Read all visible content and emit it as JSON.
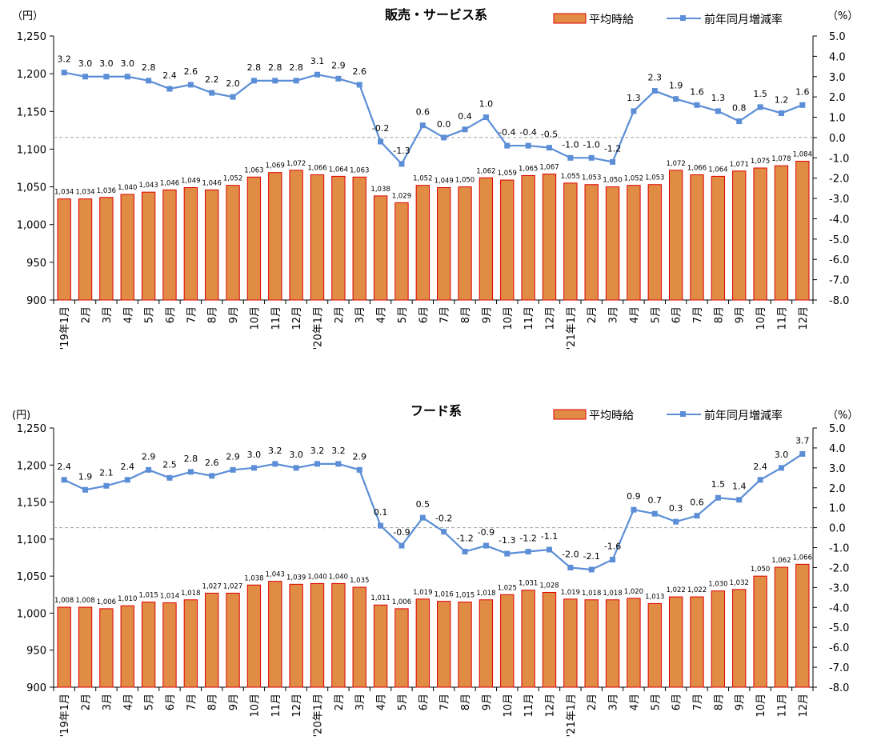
{
  "colors": {
    "bar_fill": "#E08C45",
    "bar_stroke": "#E00000",
    "line": "#5B8ED6",
    "zero_line": "#A0A0A0"
  },
  "chart_data": [
    {
      "type": "bar",
      "title": "販売・サービス系",
      "left_unit": "（円）",
      "right_unit": "（%）",
      "legend": {
        "bar": "平均時給",
        "line": "前年同月増減率",
        "placement": "top-right"
      },
      "categories": [
        "'19年1月",
        "2月",
        "3月",
        "4月",
        "5月",
        "6月",
        "7月",
        "8月",
        "9月",
        "10月",
        "11月",
        "12月",
        "'20年1月",
        "2月",
        "3月",
        "4月",
        "5月",
        "6月",
        "7月",
        "8月",
        "9月",
        "10月",
        "11月",
        "12月",
        "'21年1月",
        "2月",
        "3月",
        "4月",
        "5月",
        "6月",
        "7月",
        "8月",
        "9月",
        "10月",
        "11月",
        "12月"
      ],
      "ylim": [
        900,
        1250
      ],
      "yticks": [
        "900",
        "950",
        "1,000",
        "1,050",
        "1,100",
        "1,150",
        "1,200",
        "1,250"
      ],
      "y2lim": [
        -8.0,
        5.0
      ],
      "y2ticks": [
        "-8.0",
        "-7.0",
        "-6.0",
        "-5.0",
        "-4.0",
        "-3.0",
        "-2.0",
        "-1.0",
        "0.0",
        "1.0",
        "2.0",
        "3.0",
        "4.0",
        "5.0"
      ],
      "series": [
        {
          "name": "平均時給",
          "type": "bar",
          "axis": "left",
          "values": [
            1034,
            1034,
            1036,
            1040,
            1043,
            1046,
            1049,
            1046,
            1052,
            1063,
            1069,
            1072,
            1066,
            1064,
            1063,
            1038,
            1029,
            1052,
            1049,
            1050,
            1062,
            1059,
            1065,
            1067,
            1055,
            1053,
            1050,
            1052,
            1053,
            1072,
            1066,
            1064,
            1071,
            1075,
            1078,
            1084
          ],
          "labels": [
            "1,034",
            "1,034",
            "1,036",
            "1,040",
            "1,043",
            "1,046",
            "1,049",
            "1,046",
            "1,052",
            "1,063",
            "1,069",
            "1,072",
            "1,066",
            "1,064",
            "1,063",
            "1,038",
            "1,029",
            "1,052",
            "1,049",
            "1,050",
            "1,062",
            "1,059",
            "1,065",
            "1,067",
            "1,055",
            "1,053",
            "1,050",
            "1,052",
            "1,053",
            "1,072",
            "1,066",
            "1,064",
            "1,071",
            "1,075",
            "1,078",
            "1,084"
          ]
        },
        {
          "name": "前年同月増減率",
          "type": "line",
          "axis": "right",
          "values": [
            3.2,
            3.0,
            3.0,
            3.0,
            2.8,
            2.4,
            2.6,
            2.2,
            2.0,
            2.8,
            2.8,
            2.8,
            3.1,
            2.9,
            2.6,
            -0.2,
            -1.3,
            0.6,
            0.0,
            0.4,
            1.0,
            -0.4,
            -0.4,
            -0.5,
            -1.0,
            -1.0,
            -1.2,
            1.3,
            2.3,
            1.9,
            1.6,
            1.3,
            0.8,
            1.5,
            1.2,
            1.6
          ],
          "labels": [
            "3.2",
            "3.0",
            "3.0",
            "3.0",
            "2.8",
            "2.4",
            "2.6",
            "2.2",
            "2.0",
            "2.8",
            "2.8",
            "2.8",
            "3.1",
            "2.9",
            "2.6",
            "-0.2",
            "-1.3",
            "0.6",
            "0.0",
            "0.4",
            "1.0",
            "-0.4",
            "-0.4",
            "-0.5",
            "-1.0",
            "-1.0",
            "-1.2",
            "1.3",
            "2.3",
            "1.9",
            "1.6",
            "1.3",
            "0.8",
            "1.5",
            "1.2",
            "1.6"
          ]
        }
      ]
    },
    {
      "type": "bar",
      "title": "フード系",
      "left_unit": "(円)",
      "right_unit": "（%）",
      "legend": {
        "bar": "平均時給",
        "line": "前年同月増減率",
        "placement": "top-right"
      },
      "categories": [
        "'19年1月",
        "2月",
        "3月",
        "4月",
        "5月",
        "6月",
        "7月",
        "8月",
        "9月",
        "10月",
        "11月",
        "12月",
        "'20年1月",
        "2月",
        "3月",
        "4月",
        "5月",
        "6月",
        "7月",
        "8月",
        "9月",
        "10月",
        "11月",
        "12月",
        "'21年1月",
        "2月",
        "3月",
        "4月",
        "5月",
        "6月",
        "7月",
        "8月",
        "9月",
        "10月",
        "11月",
        "12月"
      ],
      "ylim": [
        900,
        1250
      ],
      "yticks": [
        "900",
        "950",
        "1,000",
        "1,050",
        "1,100",
        "1,150",
        "1,200",
        "1,250"
      ],
      "y2lim": [
        -8.0,
        5.0
      ],
      "y2ticks": [
        "-8.0",
        "-7.0",
        "-6.0",
        "-5.0",
        "-4.0",
        "-3.0",
        "-2.0",
        "-1.0",
        "0.0",
        "1.0",
        "2.0",
        "3.0",
        "4.0",
        "5.0"
      ],
      "series": [
        {
          "name": "平均時給",
          "type": "bar",
          "axis": "left",
          "values": [
            1008,
            1008,
            1006,
            1010,
            1015,
            1014,
            1018,
            1027,
            1027,
            1038,
            1043,
            1039,
            1040,
            1040,
            1035,
            1011,
            1006,
            1019,
            1016,
            1015,
            1018,
            1025,
            1031,
            1028,
            1019,
            1018,
            1018,
            1020,
            1013,
            1022,
            1022,
            1030,
            1032,
            1050,
            1062,
            1066
          ],
          "labels": [
            "1,008",
            "1,008",
            "1,006",
            "1,010",
            "1,015",
            "1,014",
            "1,018",
            "1,027",
            "1,027",
            "1,038",
            "1,043",
            "1,039",
            "1,040",
            "1,040",
            "1,035",
            "1,011",
            "1,006",
            "1,019",
            "1,016",
            "1,015",
            "1,018",
            "1,025",
            "1,031",
            "1,028",
            "1,019",
            "1,018",
            "1,018",
            "1,020",
            "1,013",
            "1,022",
            "1,022",
            "1,030",
            "1,032",
            "1,050",
            "1,062",
            "1,066"
          ]
        },
        {
          "name": "前年同月増減率",
          "type": "line",
          "axis": "right",
          "values": [
            2.4,
            1.9,
            2.1,
            2.4,
            2.9,
            2.5,
            2.8,
            2.6,
            2.9,
            3.0,
            3.2,
            3.0,
            3.2,
            3.2,
            2.9,
            0.1,
            -0.9,
            0.5,
            -0.2,
            -1.2,
            -0.9,
            -1.3,
            -1.2,
            -1.1,
            -2.0,
            -2.1,
            -1.6,
            0.9,
            0.7,
            0.3,
            0.6,
            1.5,
            1.4,
            2.4,
            3.0,
            3.7
          ],
          "labels": [
            "2.4",
            "1.9",
            "2.1",
            "2.4",
            "2.9",
            "2.5",
            "2.8",
            "2.6",
            "2.9",
            "3.0",
            "3.2",
            "3.0",
            "3.2",
            "3.2",
            "2.9",
            "0.1",
            "-0.9",
            "0.5",
            "-0.2",
            "-1.2",
            "-0.9",
            "-1.3",
            "-1.2",
            "-1.1",
            "-2.0",
            "-2.1",
            "-1.6",
            "0.9",
            "0.7",
            "0.3",
            "0.6",
            "1.5",
            "1.4",
            "2.4",
            "3.0",
            "3.7"
          ]
        }
      ]
    }
  ]
}
